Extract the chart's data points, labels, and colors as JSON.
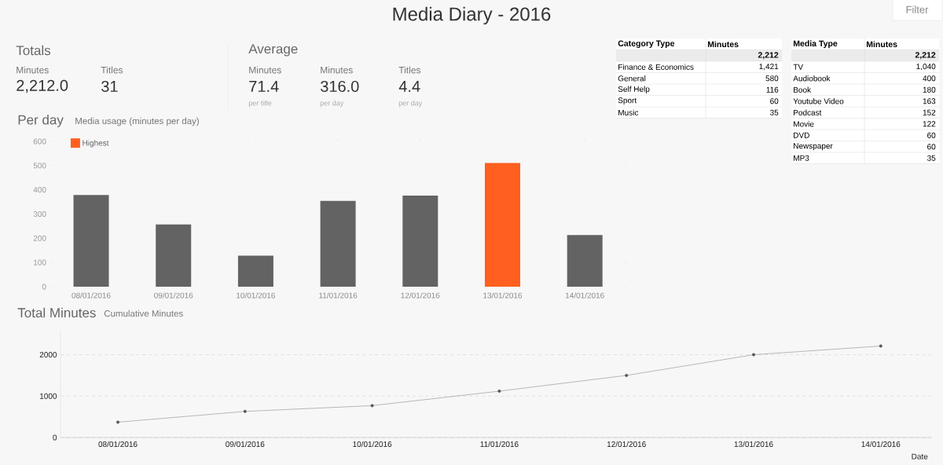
{
  "chart_data": [
    {
      "type": "other",
      "title": "Media Diary - 2016",
      "annotations": [
        "Totals",
        "Minutes",
        "2,212.0",
        "Titles",
        "31",
        "Average",
        "Minutes",
        "71.4",
        "per title",
        "Minutes",
        "316.0",
        "per day",
        "Titles",
        "4.4",
        "per day",
        "Filter"
      ]
    },
    {
      "type": "other",
      "annotations": [
        "Category Type",
        "Minutes",
        "2,212"
      ],
      "categories": [
        "Finance & Economics",
        "General",
        "Self Help",
        "Sport",
        "Music"
      ],
      "values": [
        1421,
        580,
        116,
        60,
        35
      ],
      "value_labels": [
        "1,421",
        "580",
        "116",
        "60",
        "35"
      ]
    },
    {
      "type": "other",
      "annotations": [
        "Media Type",
        "Minutes",
        "2,212"
      ],
      "categories": [
        "TV",
        "Audiobook",
        "Book",
        "Youtube Video",
        "Podcast",
        "Movie",
        "DVD",
        "Newspaper",
        "MP3"
      ],
      "values": [
        1040,
        400,
        180,
        163,
        152,
        122,
        60,
        60,
        35
      ],
      "value_labels": [
        "1,040",
        "400",
        "180",
        "163",
        "152",
        "122",
        "60",
        "60",
        "35"
      ]
    },
    {
      "type": "bar",
      "title": "Per day",
      "subtitle": "Media usage (minutes per day)",
      "categories": [
        "08/01/2016",
        "09/01/2016",
        "10/01/2016",
        "11/01/2016",
        "12/01/2016",
        "13/01/2016",
        "14/01/2016"
      ],
      "series": [
        {
          "color": "#636363",
          "values": [
            379,
            257,
            128,
            354,
            376,
            null,
            213
          ]
        },
        {
          "name": "Highest",
          "color": "#ff5f1f",
          "values": [
            null,
            null,
            null,
            null,
            null,
            511,
            null
          ]
        }
      ],
      "ylim": [
        0,
        600
      ],
      "yticks": [
        0,
        100,
        200,
        300,
        400,
        500,
        600
      ],
      "legend": "top left"
    },
    {
      "type": "line",
      "title": "Total Minutes",
      "subtitle": "Cumulative Minutes",
      "xlabel": "Date",
      "categories": [
        "08/01/2016",
        "09/01/2016",
        "10/01/2016",
        "11/01/2016",
        "12/01/2016",
        "13/01/2016",
        "14/01/2016"
      ],
      "values": [
        370,
        630,
        770,
        1120,
        1500,
        2000,
        2210
      ],
      "color": "#7f7f7f",
      "ylim": [
        0,
        2600
      ],
      "yticks": [
        0,
        1000,
        2000
      ],
      "grid": "y",
      "marker": "circle"
    }
  ]
}
